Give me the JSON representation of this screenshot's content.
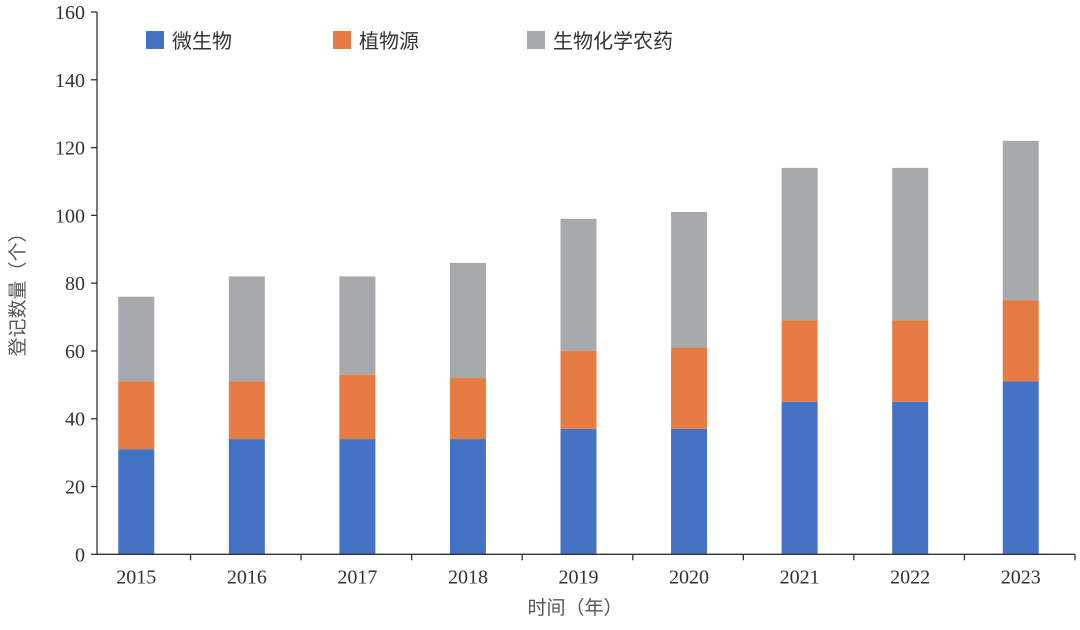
{
  "chart_data": {
    "type": "bar",
    "stacked": true,
    "title": "",
    "xlabel": "时间（年）",
    "ylabel": "登记数量（个）",
    "ylim": [
      0,
      160
    ],
    "yticks": [
      0,
      20,
      40,
      60,
      80,
      100,
      120,
      140,
      160
    ],
    "grid": false,
    "legend_position": "top-left",
    "categories": [
      "2015",
      "2016",
      "2017",
      "2018",
      "2019",
      "2020",
      "2021",
      "2022",
      "2023"
    ],
    "series": [
      {
        "name": "微生物",
        "color": "#4472C4",
        "values": [
          31,
          34,
          34,
          34,
          37,
          37,
          45,
          45,
          51
        ]
      },
      {
        "name": "植物源",
        "color": "#E67C43",
        "values": [
          20,
          17,
          19,
          18,
          23,
          24,
          24,
          24,
          24
        ]
      },
      {
        "name": "生物化学农药",
        "color": "#A7A9AC",
        "values": [
          25,
          31,
          29,
          34,
          39,
          40,
          45,
          45,
          47
        ]
      }
    ]
  }
}
